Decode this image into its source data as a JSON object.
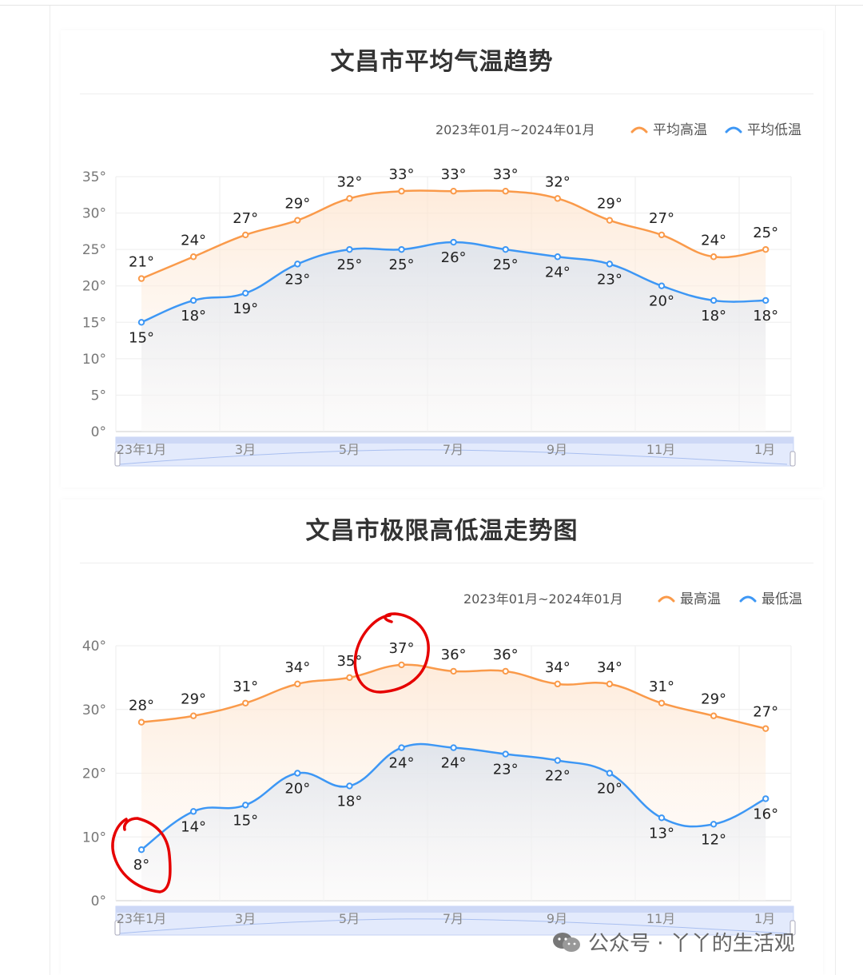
{
  "charts": [
    {
      "title": "文昌市平均气温趋势",
      "date_range": "2023年01月~2024年01月",
      "legend": [
        {
          "name": "平均高温",
          "color": "#fa9a4a"
        },
        {
          "name": "平均低温",
          "color": "#3d97f5"
        }
      ]
    },
    {
      "title": "文昌市极限高低温走势图",
      "date_range": "2023年01月~2024年01月",
      "legend": [
        {
          "name": "最高温",
          "color": "#fa9a4a"
        },
        {
          "name": "最低温",
          "color": "#3d97f5"
        }
      ]
    }
  ],
  "watermark": {
    "text": "公众号 · 丫丫的生活观",
    "icon": "wechat-icon"
  },
  "chart_data": [
    {
      "type": "line",
      "title": "文昌市平均气温趋势",
      "x_ticks": [
        "23年1月",
        "3月",
        "5月",
        "7月",
        "9月",
        "11月",
        "1月"
      ],
      "ylim": [
        0,
        35
      ],
      "y_ticks": [
        "0°",
        "5°",
        "10°",
        "15°",
        "20°",
        "25°",
        "30°",
        "35°"
      ],
      "grid": true,
      "legend_position": "top-right",
      "series": [
        {
          "name": "平均高温",
          "color": "#fa9a4a",
          "values": [
            21,
            24,
            27,
            29,
            32,
            33,
            33,
            33,
            32,
            29,
            27,
            24,
            25
          ],
          "labels": [
            "21°",
            "24°",
            "27°",
            "29°",
            "32°",
            "33°",
            "33°",
            "33°",
            "32°",
            "29°",
            "27°",
            "24°",
            "25°"
          ]
        },
        {
          "name": "平均低温",
          "color": "#3d97f5",
          "values": [
            15,
            18,
            19,
            23,
            25,
            25,
            26,
            25,
            24,
            23,
            20,
            18,
            18
          ],
          "labels": [
            "15°",
            "18°",
            "19°",
            "23°",
            "25°",
            "25°",
            "26°",
            "25°",
            "24°",
            "23°",
            "20°",
            "18°",
            "18°"
          ]
        }
      ]
    },
    {
      "type": "line",
      "title": "文昌市极限高低温走势图",
      "x_ticks": [
        "23年1月",
        "3月",
        "5月",
        "7月",
        "9月",
        "11月",
        "1月"
      ],
      "ylim": [
        0,
        40
      ],
      "y_ticks": [
        "0°",
        "10°",
        "20°",
        "30°",
        "40°"
      ],
      "grid": true,
      "legend_position": "top-right",
      "series": [
        {
          "name": "最高温",
          "color": "#fa9a4a",
          "values": [
            28,
            29,
            31,
            34,
            35,
            37,
            36,
            36,
            34,
            34,
            31,
            29,
            27
          ],
          "labels": [
            "28°",
            "29°",
            "31°",
            "34°",
            "35°",
            "37°",
            "36°",
            "36°",
            "34°",
            "34°",
            "31°",
            "29°",
            "27°"
          ]
        },
        {
          "name": "最低温",
          "color": "#3d97f5",
          "values": [
            8,
            14,
            15,
            20,
            18,
            24,
            24,
            23,
            22,
            20,
            13,
            12,
            16
          ],
          "labels": [
            "8°",
            "14°",
            "15°",
            "20°",
            "18°",
            "24°",
            "24°",
            "23°",
            "22°",
            "20°",
            "13°",
            "12°",
            "16°"
          ]
        }
      ],
      "annotations": [
        "red hand-drawn circle around 37° peak",
        "red hand-drawn circle around 8° minimum"
      ]
    }
  ]
}
